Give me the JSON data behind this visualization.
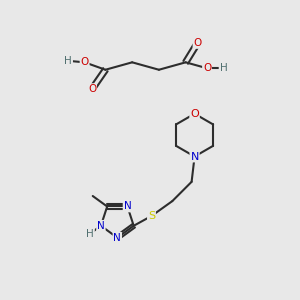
{
  "bg_color": "#e8e8e8",
  "bond_color": "#2d2d2d",
  "colors": {
    "N": "#0000cc",
    "O": "#cc0000",
    "S": "#cccc00",
    "H": "#507070"
  },
  "figsize": [
    3.0,
    3.0
  ],
  "dpi": 100
}
